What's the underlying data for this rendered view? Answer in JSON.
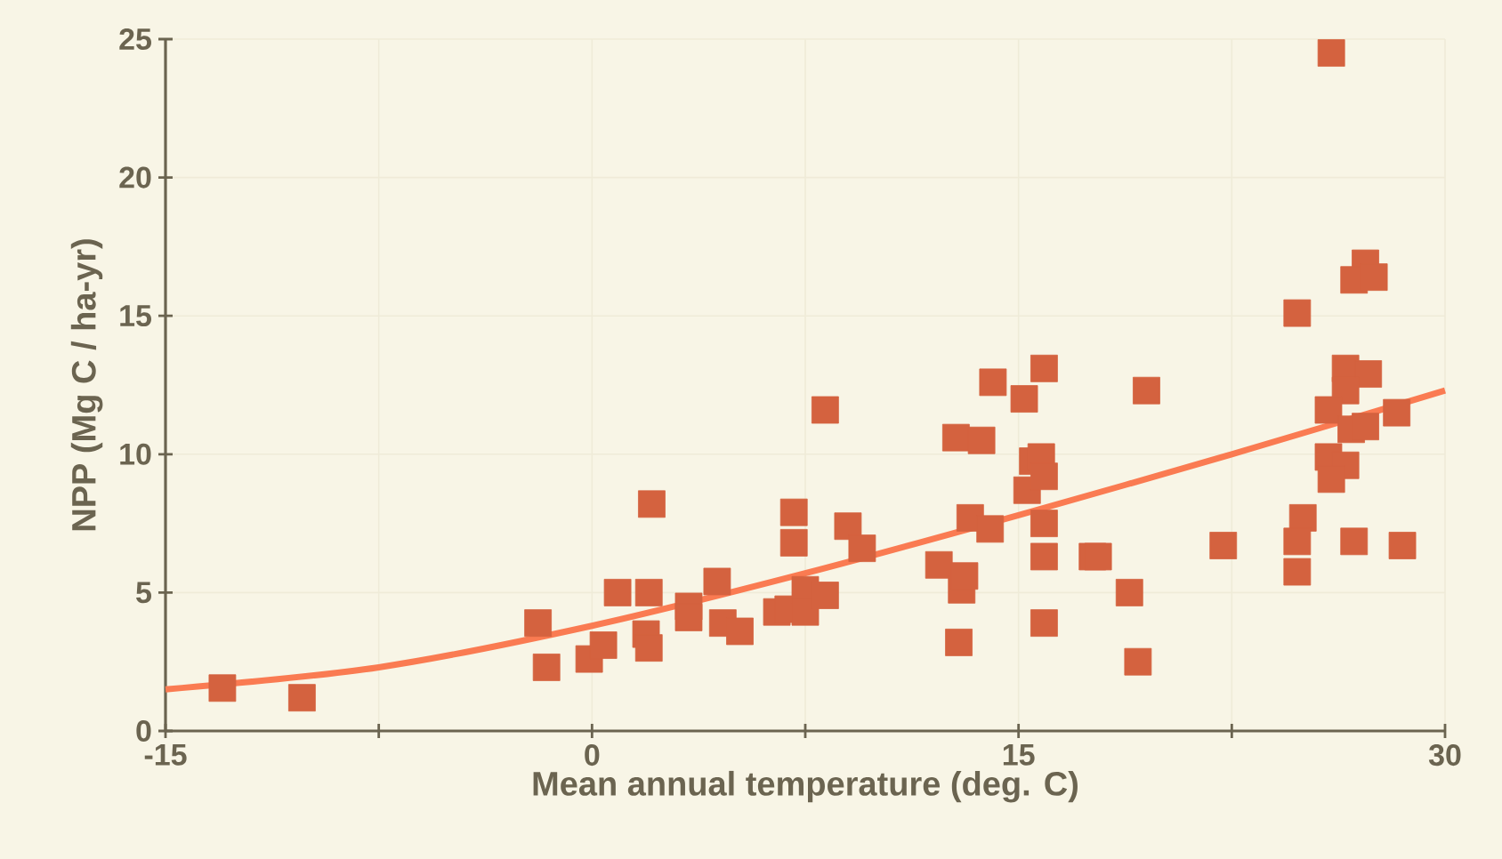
{
  "chart_data": {
    "type": "scatter",
    "xlabel": "Mean annual temperature (deg. C)",
    "ylabel": "NPP (Mg C / ha-yr)",
    "xlim": [
      -15,
      30
    ],
    "ylim": [
      0,
      25
    ],
    "xticks": [
      -15,
      {
        "value": -7.5,
        "label": null
      },
      0,
      {
        "value": 7.5,
        "label": null
      },
      15,
      {
        "value": 22.5,
        "label": null
      },
      30
    ],
    "yticks": [
      0,
      5,
      10,
      15,
      20,
      25
    ],
    "grid": true,
    "marker": "square",
    "series": [
      {
        "color": "#d4623f",
        "x": [
          -13.0,
          -10.2,
          -1.9,
          -1.6,
          -0.1,
          0.4,
          0.9,
          2.0,
          1.9,
          2.0,
          2.1,
          3.4,
          3.4,
          4.4,
          4.6,
          5.2,
          6.5,
          7.1,
          7.1,
          6.9,
          7.5,
          7.5,
          8.2,
          8.2,
          9.0,
          9.5,
          12.2,
          12.8,
          13.0,
          12.9,
          13.1,
          13.3,
          13.7,
          14.0,
          14.1,
          15.2,
          15.9,
          15.5,
          15.8,
          15.3,
          15.9,
          15.9,
          15.9,
          15.9,
          17.6,
          17.8,
          18.9,
          19.2,
          19.5,
          26.0,
          27.2,
          26.8,
          27.5,
          24.8,
          26.5,
          27.3,
          26.5,
          25.9,
          28.3,
          26.7,
          27.2,
          25.9,
          26.5,
          26.0,
          25.0,
          24.8,
          22.2,
          26.8,
          28.5,
          24.8
        ],
        "values": [
          1.55,
          1.2,
          3.9,
          2.3,
          2.6,
          3.1,
          5.0,
          5.0,
          3.5,
          3.0,
          8.2,
          4.5,
          4.1,
          5.4,
          3.9,
          3.6,
          4.3,
          7.9,
          6.8,
          4.4,
          5.1,
          4.3,
          11.6,
          4.9,
          7.4,
          6.6,
          6.0,
          10.6,
          5.1,
          3.2,
          5.6,
          7.7,
          10.5,
          7.3,
          12.6,
          12.0,
          13.1,
          9.75,
          9.9,
          8.7,
          9.2,
          7.5,
          6.3,
          3.9,
          6.3,
          6.3,
          5.0,
          2.5,
          12.3,
          24.5,
          16.9,
          16.3,
          16.4,
          15.1,
          13.1,
          12.9,
          12.3,
          11.6,
          11.5,
          10.9,
          11.0,
          9.9,
          9.6,
          9.1,
          7.7,
          6.85,
          6.7,
          6.85,
          6.7,
          5.75
        ]
      },
      {
        "type": "line",
        "color": "#fa7b52",
        "marker": "none",
        "x": [
          -15,
          -7.5,
          0,
          7.5,
          15,
          22.5,
          30
        ],
        "values": [
          1.5,
          2.3,
          3.8,
          5.7,
          7.8,
          10.0,
          12.3
        ]
      }
    ]
  }
}
